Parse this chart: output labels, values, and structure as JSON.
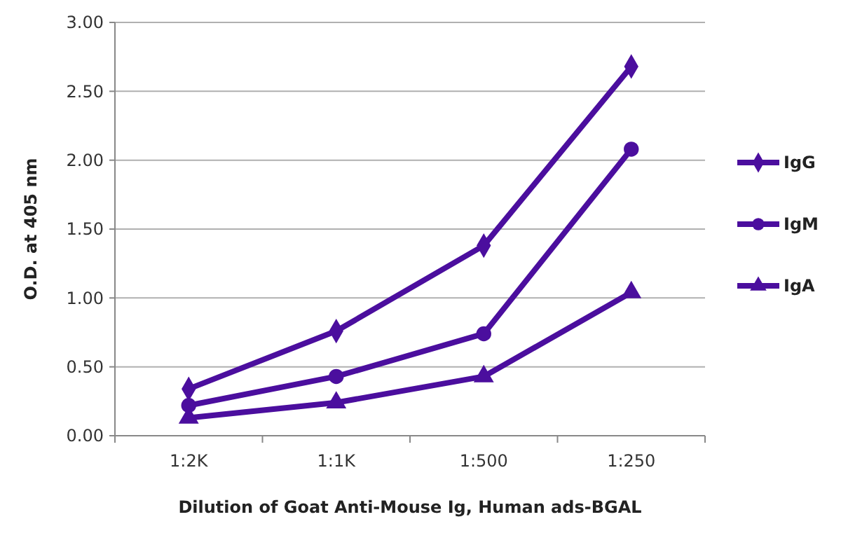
{
  "chart_data": {
    "type": "line",
    "xlabel": "Dilution of Goat Anti-Mouse Ig, Human ads-BGAL",
    "ylabel": "O.D. at 405 nm",
    "categories": [
      "1:2K",
      "1:1K",
      "1:500",
      "1:250"
    ],
    "series": [
      {
        "name": "IgG",
        "color": "#4b0e9e",
        "marker": "diamond",
        "values": [
          0.34,
          0.76,
          1.38,
          2.68
        ]
      },
      {
        "name": "IgM",
        "color": "#4b0e9e",
        "marker": "circle",
        "values": [
          0.22,
          0.43,
          0.74,
          2.08
        ]
      },
      {
        "name": "IgA",
        "color": "#4b0e9e",
        "marker": "triangle",
        "values": [
          0.13,
          0.24,
          0.43,
          1.04
        ]
      }
    ],
    "ylim": [
      0,
      3
    ],
    "yticks": [
      {
        "value": 0,
        "label": "0.00"
      },
      {
        "value": 0.5,
        "label": "0.50"
      },
      {
        "value": 1,
        "label": "1.00"
      },
      {
        "value": 1.5,
        "label": "1.50"
      },
      {
        "value": 2,
        "label": "2.00"
      },
      {
        "value": 2.5,
        "label": "2.50"
      },
      {
        "value": 3,
        "label": "3.00"
      }
    ],
    "grid": "y",
    "legend": "right",
    "line_style": "solid"
  }
}
